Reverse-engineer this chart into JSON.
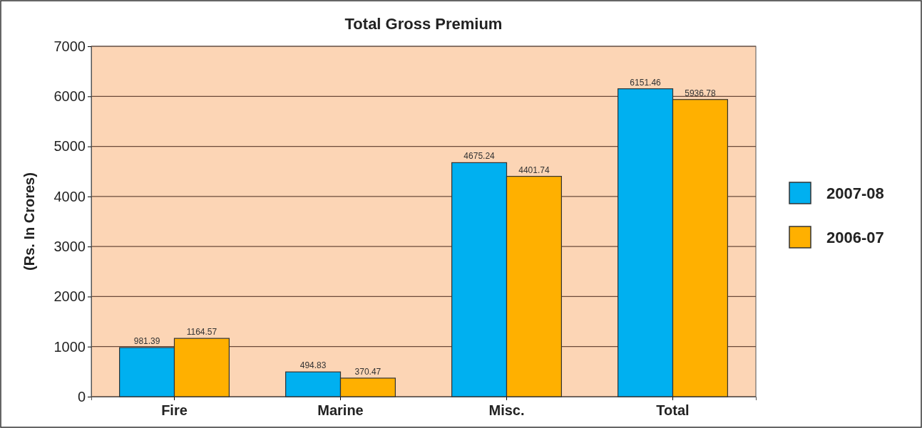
{
  "chart_data": {
    "type": "bar",
    "title": "Total Gross Premium",
    "ylabel": "(Rs. In Crores)",
    "categories": [
      "Fire",
      "Marine",
      "Misc.",
      "Total"
    ],
    "series": [
      {
        "name": "2007-08",
        "color": "#00b0f0",
        "values": [
          981.39,
          494.83,
          4675.24,
          6151.46
        ]
      },
      {
        "name": "2006-07",
        "color": "#ffb000",
        "values": [
          1164.57,
          370.47,
          4401.74,
          5936.78
        ]
      }
    ],
    "ylim": [
      0,
      7000
    ],
    "yticks": [
      0,
      1000,
      2000,
      3000,
      4000,
      5000,
      6000,
      7000
    ],
    "grid": "y",
    "legend": "right",
    "data_labels": true
  }
}
